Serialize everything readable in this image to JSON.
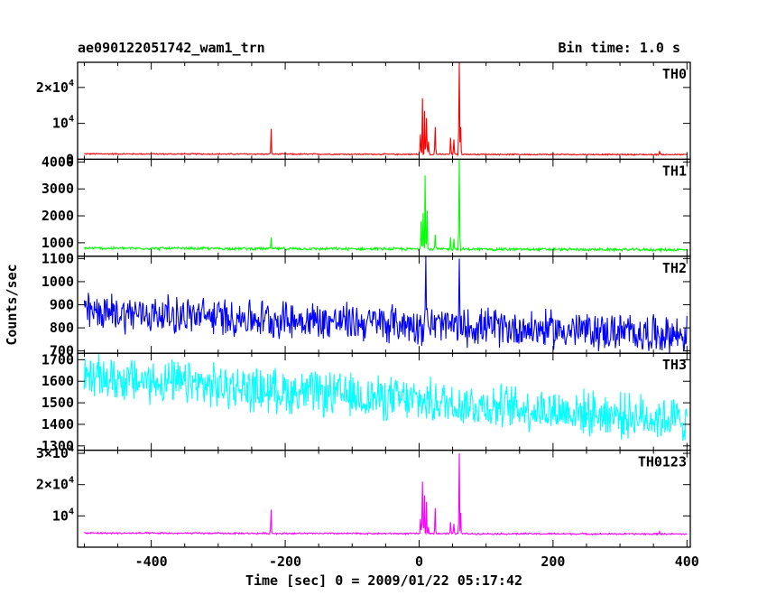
{
  "header": {
    "title": "ae090122051742_wam1_trn",
    "bin_time": "Bin time: 1.0 s"
  },
  "axes": {
    "xlabel": "Time [sec] 0 = 2009/01/22 05:17:42",
    "ylabel": "Counts/sec",
    "xlim": [
      -510,
      405
    ],
    "xticks": [
      -400,
      -200,
      0,
      200,
      400
    ]
  },
  "chart_data": {
    "type": "line",
    "title": "ae090122051742_wam1_trn",
    "xlabel": "Time [sec] 0 = 2009/01/22 05:17:42",
    "ylabel": "Counts/sec",
    "xlim": [
      -510,
      405
    ],
    "x_range": [
      -500,
      400
    ],
    "bin_time_s": 1.0,
    "panels": [
      {
        "name": "TH0",
        "color": "#ff0000",
        "ylim": [
          0,
          27000
        ],
        "ytick_values": [
          0,
          10000,
          20000
        ],
        "ytick_labels": [
          {
            "mant": "0",
            "exp": ""
          },
          {
            "mant": "10",
            "exp": "4"
          },
          {
            "mant": "2×10",
            "exp": "4"
          }
        ],
        "baseline": {
          "start": 1500,
          "end": 1300,
          "noise": 200
        },
        "peaks": [
          [
            -221,
            8500
          ],
          [
            2,
            7000
          ],
          [
            5,
            17000
          ],
          [
            8,
            13500
          ],
          [
            11,
            11500
          ],
          [
            14,
            5000
          ],
          [
            24,
            9000
          ],
          [
            47,
            6000
          ],
          [
            52,
            5500
          ],
          [
            60,
            27000
          ],
          [
            62,
            9000
          ],
          [
            359,
            2300
          ]
        ]
      },
      {
        "name": "TH1",
        "color": "#00ff00",
        "ylim": [
          500,
          4100
        ],
        "ytick_values": [
          1000,
          2000,
          3000,
          4000
        ],
        "ytick_labels": [
          {
            "mant": "1000",
            "exp": ""
          },
          {
            "mant": "2000",
            "exp": ""
          },
          {
            "mant": "3000",
            "exp": ""
          },
          {
            "mant": "4000",
            "exp": ""
          }
        ],
        "baseline": {
          "start": 800,
          "end": 740,
          "noise": 60
        },
        "peaks": [
          [
            -221,
            1200
          ],
          [
            3,
            1800
          ],
          [
            6,
            2100
          ],
          [
            9,
            3500
          ],
          [
            12,
            2200
          ],
          [
            24,
            1300
          ],
          [
            47,
            1200
          ],
          [
            52,
            1150
          ],
          [
            60,
            4100
          ]
        ]
      },
      {
        "name": "TH2",
        "color": "#0000ff",
        "ylim": [
          690,
          1110
        ],
        "ytick_values": [
          700,
          800,
          900,
          1000,
          1100
        ],
        "ytick_labels": [
          {
            "mant": "700",
            "exp": ""
          },
          {
            "mant": "800",
            "exp": ""
          },
          {
            "mant": "900",
            "exp": ""
          },
          {
            "mant": "1000",
            "exp": ""
          },
          {
            "mant": "1100",
            "exp": ""
          }
        ],
        "baseline": {
          "start": 870,
          "end": 770,
          "noise": 95
        },
        "peaks": [
          [
            10,
            1110
          ],
          [
            60,
            1100
          ]
        ]
      },
      {
        "name": "TH3",
        "color": "#00ffff",
        "ylim": [
          1280,
          1730
        ],
        "ytick_values": [
          1300,
          1400,
          1500,
          1600,
          1700
        ],
        "ytick_labels": [
          {
            "mant": "1300",
            "exp": ""
          },
          {
            "mant": "1400",
            "exp": ""
          },
          {
            "mant": "1500",
            "exp": ""
          },
          {
            "mant": "1600",
            "exp": ""
          },
          {
            "mant": "1700",
            "exp": ""
          }
        ],
        "baseline": {
          "start": 1620,
          "end": 1420,
          "noise": 120
        },
        "peaks": []
      },
      {
        "name": "TH0123",
        "color": "#ff00ff",
        "ylim": [
          0,
          31000
        ],
        "ytick_values": [
          10000,
          20000,
          30000
        ],
        "ytick_labels": [
          {
            "mant": "10",
            "exp": "4"
          },
          {
            "mant": "2×10",
            "exp": "4"
          },
          {
            "mant": "3×10",
            "exp": "4"
          }
        ],
        "baseline": {
          "start": 4500,
          "end": 4200,
          "noise": 300
        },
        "peaks": [
          [
            -221,
            12000
          ],
          [
            2,
            9000
          ],
          [
            5,
            21000
          ],
          [
            8,
            16500
          ],
          [
            11,
            14500
          ],
          [
            14,
            6500
          ],
          [
            24,
            12500
          ],
          [
            47,
            8000
          ],
          [
            52,
            7500
          ],
          [
            60,
            30000
          ],
          [
            62,
            11000
          ],
          [
            359,
            5000
          ]
        ]
      }
    ]
  }
}
